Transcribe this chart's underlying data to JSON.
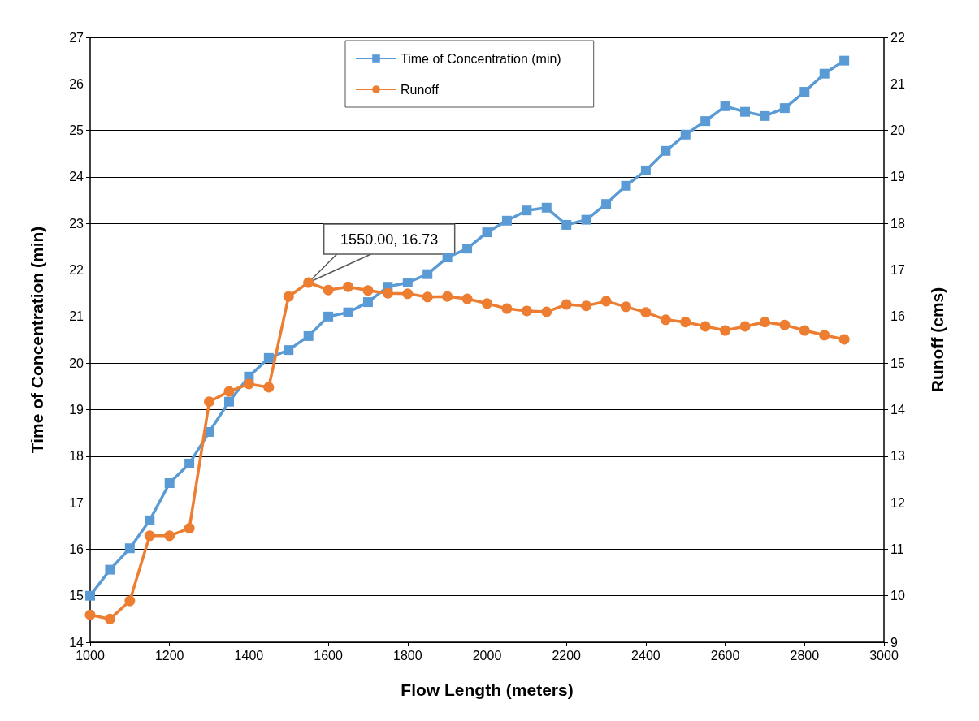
{
  "chart_data": {
    "type": "line",
    "xlabel": "Flow Length (meters)",
    "ylabel": "Time of Concentration (min)",
    "y2label": "Runoff (cms)",
    "x": [
      1000,
      1050,
      1100,
      1150,
      1200,
      1250,
      1300,
      1350,
      1400,
      1450,
      1500,
      1550,
      1600,
      1650,
      1700,
      1750,
      1800,
      1850,
      1900,
      1950,
      2000,
      2050,
      2100,
      2150,
      2200,
      2250,
      2300,
      2350,
      2400,
      2450,
      2500,
      2550,
      2600,
      2650,
      2700,
      2750,
      2800,
      2850,
      2900
    ],
    "series": [
      {
        "name": "Time of Concentration (min)",
        "color": "#5b9bd5",
        "marker": "square",
        "values": [
          15.0,
          15.56,
          16.02,
          16.62,
          17.42,
          17.84,
          18.52,
          19.17,
          19.71,
          20.11,
          20.28,
          20.58,
          21.0,
          21.09,
          21.31,
          21.64,
          21.73,
          21.91,
          22.27,
          22.46,
          22.81,
          23.06,
          23.28,
          23.34,
          22.97,
          23.08,
          23.42,
          23.81,
          24.14,
          24.56,
          24.91,
          25.2,
          25.52,
          25.4,
          25.31,
          25.48,
          25.83,
          26.22,
          26.5
        ]
      },
      {
        "name": "Runoff",
        "color": "#ed7d31",
        "marker": "circle",
        "axis": "y2",
        "values": [
          9.59,
          9.5,
          9.89,
          11.29,
          11.29,
          11.45,
          14.17,
          14.39,
          14.55,
          14.48,
          16.43,
          16.73,
          16.57,
          16.64,
          16.56,
          16.5,
          16.49,
          16.42,
          16.43,
          16.38,
          16.28,
          16.17,
          16.12,
          16.1,
          16.26,
          16.23,
          16.33,
          16.21,
          16.09,
          15.93,
          15.88,
          15.79,
          15.7,
          15.79,
          15.88,
          15.82,
          15.7,
          15.6,
          15.51
        ]
      }
    ],
    "xlim": [
      1000,
      3000
    ],
    "xticks": [
      1000,
      1200,
      1400,
      1600,
      1800,
      2000,
      2200,
      2400,
      2600,
      2800,
      3000
    ],
    "ylim": [
      14,
      27
    ],
    "yticks": [
      14,
      15,
      16,
      17,
      18,
      19,
      20,
      21,
      22,
      23,
      24,
      25,
      26,
      27
    ],
    "y2lim": [
      9,
      22
    ],
    "y2ticks": [
      9,
      10,
      11,
      12,
      13,
      14,
      15,
      16,
      17,
      18,
      19,
      20,
      21,
      22
    ],
    "annotations": [
      "1550.00, 16.73"
    ],
    "grid": "y",
    "legend": "top",
    "line_style": "solid"
  }
}
